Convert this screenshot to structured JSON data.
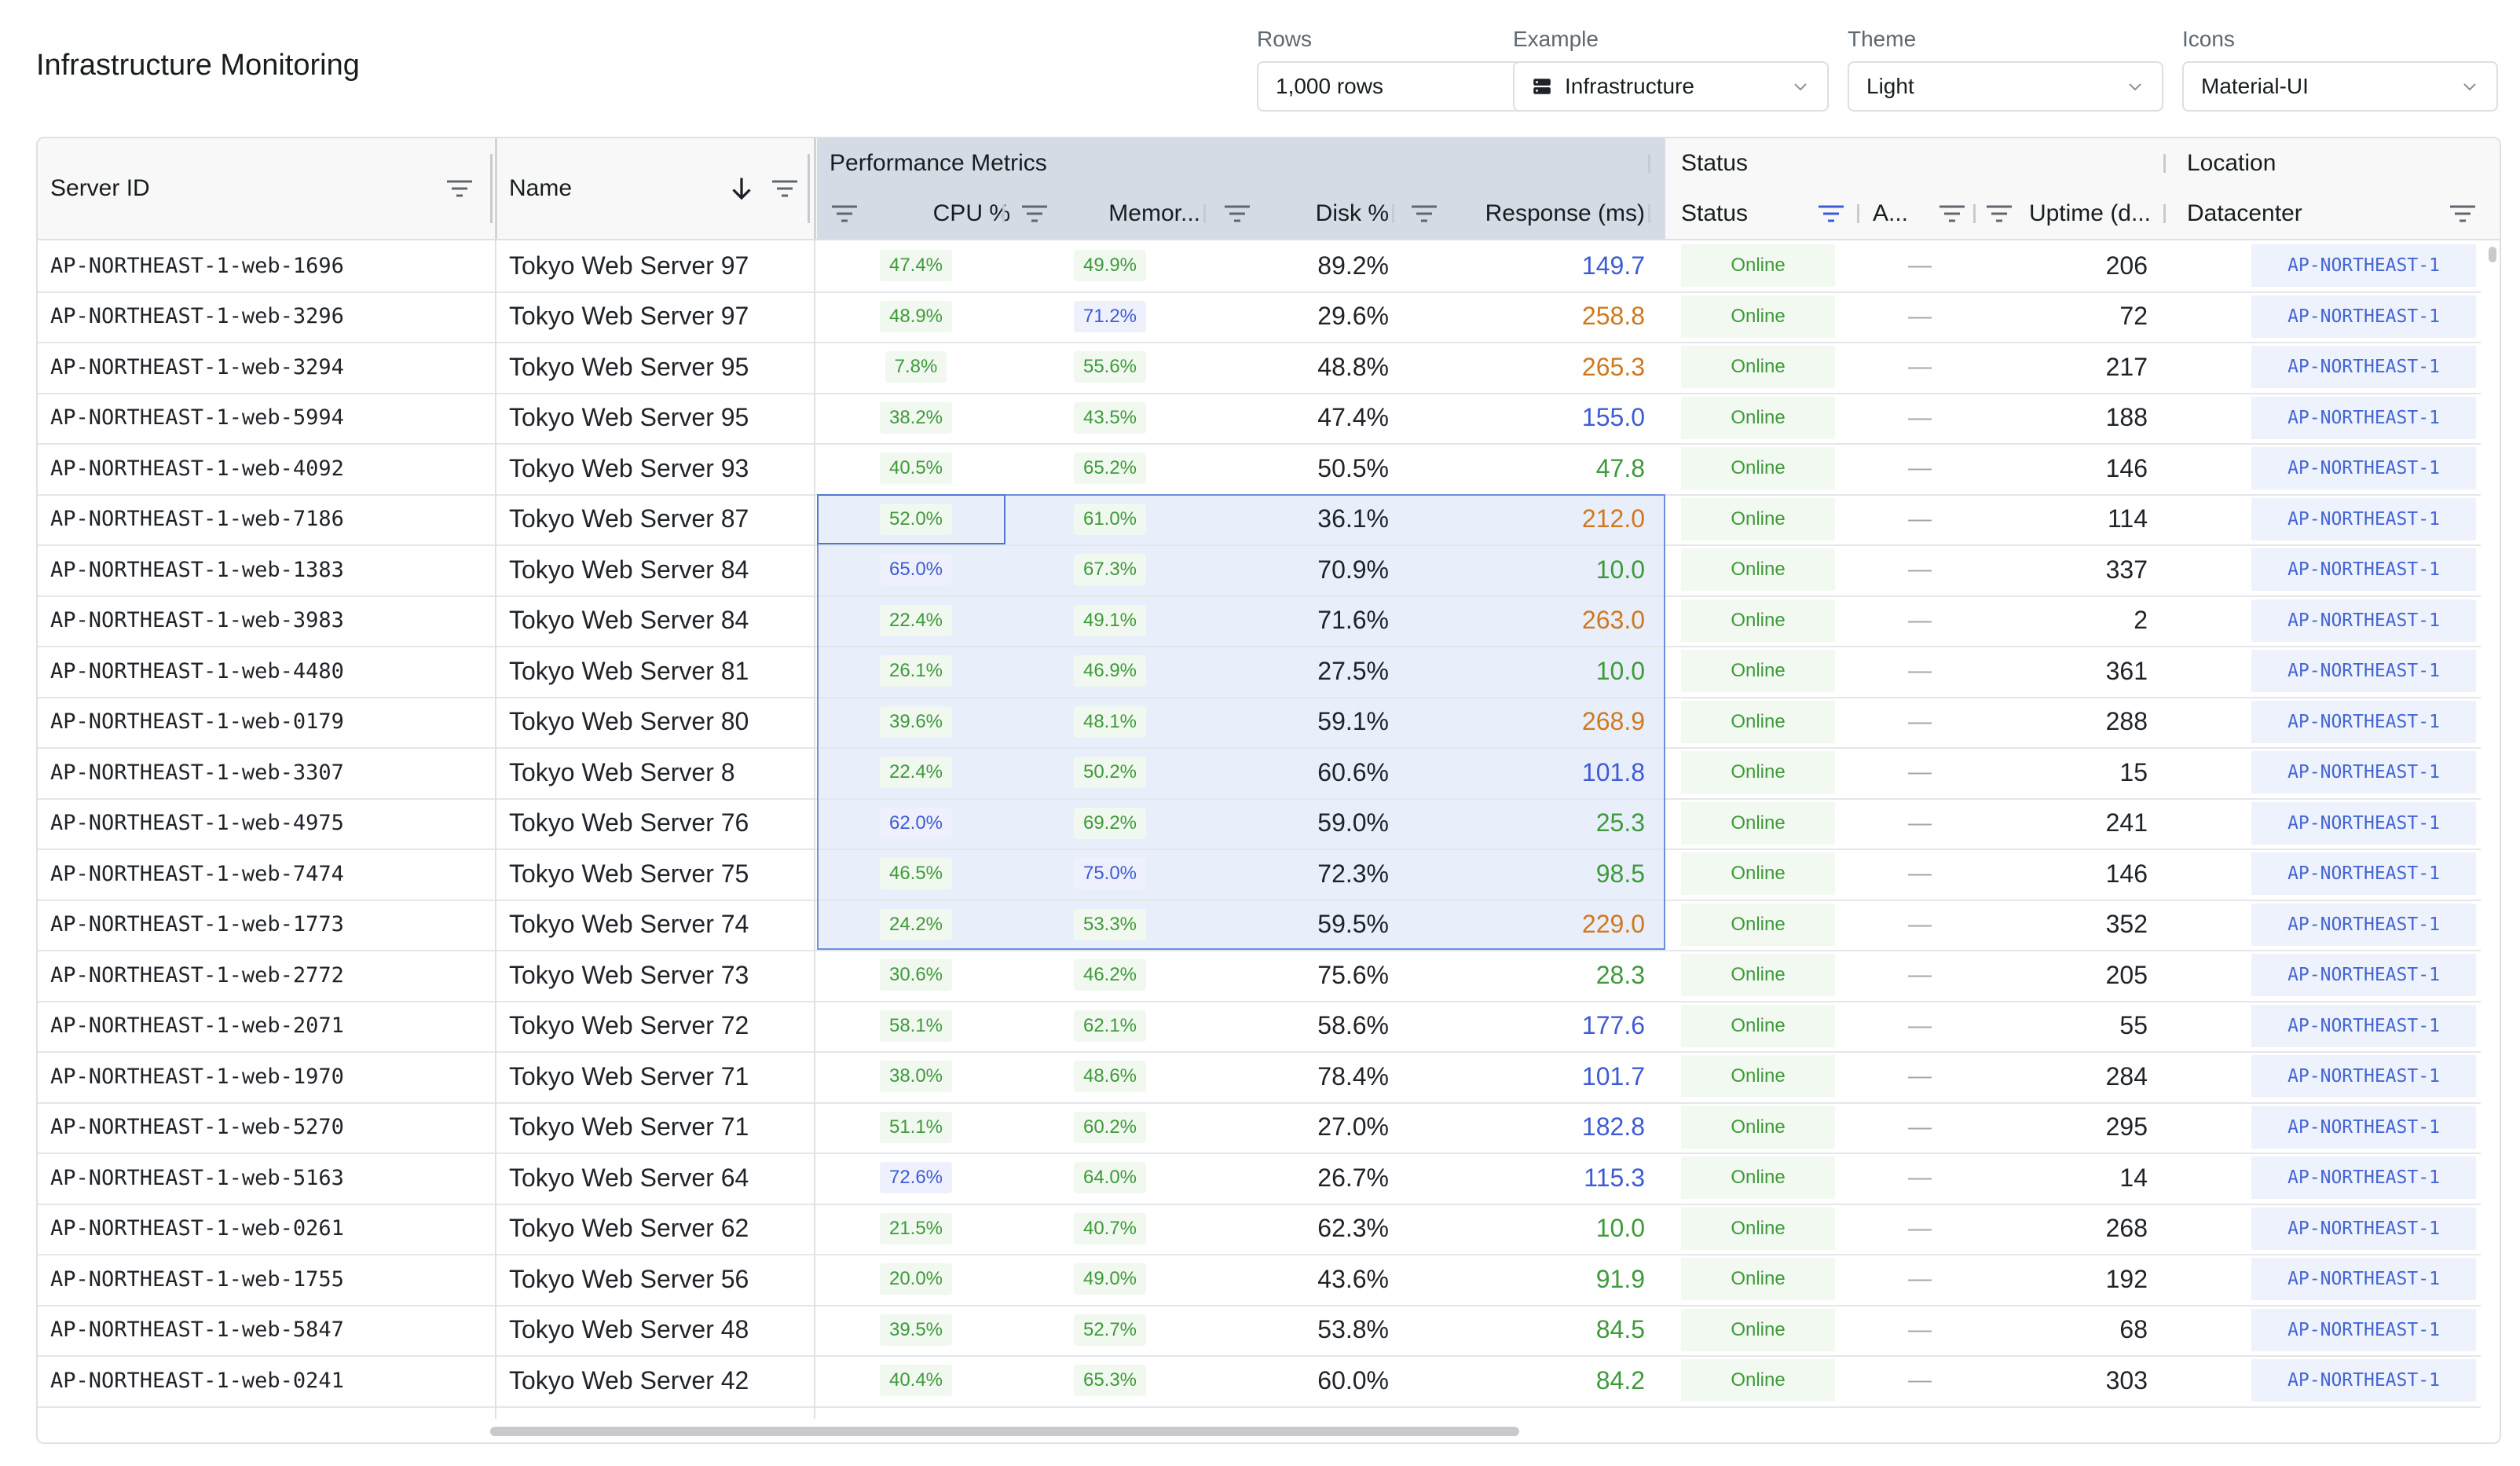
{
  "page": {
    "title": "Infrastructure Monitoring"
  },
  "controls": {
    "rows": {
      "label": "Rows",
      "value": "1,000 rows"
    },
    "example": {
      "label": "Example",
      "value": "Infrastructure"
    },
    "theme": {
      "label": "Theme",
      "value": "Light"
    },
    "icons": {
      "label": "Icons",
      "value": "Material-UI"
    }
  },
  "header": {
    "groups": {
      "performance": "Performance Metrics",
      "status": "Status",
      "location": "Location"
    },
    "columns": {
      "server_id": "Server ID",
      "name": "Name",
      "cpu": "CPU %",
      "memory": "Memor...",
      "disk": "Disk %",
      "response": "Response (ms)",
      "status": "Status",
      "alerts": "A...",
      "uptime": "Uptime (d...",
      "datacenter": "Datacenter"
    }
  },
  "colors": {
    "accent": "#3e5bd6",
    "good": "#3e9a3a",
    "warn": "#d0781e",
    "selection": "#e8effb"
  },
  "rows": [
    {
      "id": "AP-NORTHEAST-1-web-1696",
      "name": "Tokyo Web Server 97",
      "cpu": "47.4%",
      "cpu_c": "green",
      "mem": "49.9%",
      "mem_c": "green",
      "disk": "89.2%",
      "resp": "149.7",
      "resp_c": "blue",
      "status": "Online",
      "alerts": "—",
      "uptime": "206",
      "dc": "AP-NORTHEAST-1"
    },
    {
      "id": "AP-NORTHEAST-1-web-3296",
      "name": "Tokyo Web Server 97",
      "cpu": "48.9%",
      "cpu_c": "green",
      "mem": "71.2%",
      "mem_c": "blue",
      "disk": "29.6%",
      "resp": "258.8",
      "resp_c": "orange",
      "status": "Online",
      "alerts": "—",
      "uptime": "72",
      "dc": "AP-NORTHEAST-1"
    },
    {
      "id": "AP-NORTHEAST-1-web-3294",
      "name": "Tokyo Web Server 95",
      "cpu": "7.8%",
      "cpu_c": "green",
      "mem": "55.6%",
      "mem_c": "green",
      "disk": "48.8%",
      "resp": "265.3",
      "resp_c": "orange",
      "status": "Online",
      "alerts": "—",
      "uptime": "217",
      "dc": "AP-NORTHEAST-1"
    },
    {
      "id": "AP-NORTHEAST-1-web-5994",
      "name": "Tokyo Web Server 95",
      "cpu": "38.2%",
      "cpu_c": "green",
      "mem": "43.5%",
      "mem_c": "green",
      "disk": "47.4%",
      "resp": "155.0",
      "resp_c": "blue",
      "status": "Online",
      "alerts": "—",
      "uptime": "188",
      "dc": "AP-NORTHEAST-1"
    },
    {
      "id": "AP-NORTHEAST-1-web-4092",
      "name": "Tokyo Web Server 93",
      "cpu": "40.5%",
      "cpu_c": "green",
      "mem": "65.2%",
      "mem_c": "green",
      "disk": "50.5%",
      "resp": "47.8",
      "resp_c": "green",
      "status": "Online",
      "alerts": "—",
      "uptime": "146",
      "dc": "AP-NORTHEAST-1"
    },
    {
      "id": "AP-NORTHEAST-1-web-7186",
      "name": "Tokyo Web Server 87",
      "cpu": "52.0%",
      "cpu_c": "green",
      "mem": "61.0%",
      "mem_c": "green",
      "disk": "36.1%",
      "resp": "212.0",
      "resp_c": "orange",
      "status": "Online",
      "alerts": "—",
      "uptime": "114",
      "dc": "AP-NORTHEAST-1"
    },
    {
      "id": "AP-NORTHEAST-1-web-1383",
      "name": "Tokyo Web Server 84",
      "cpu": "65.0%",
      "cpu_c": "blue",
      "mem": "67.3%",
      "mem_c": "green",
      "disk": "70.9%",
      "resp": "10.0",
      "resp_c": "green",
      "status": "Online",
      "alerts": "—",
      "uptime": "337",
      "dc": "AP-NORTHEAST-1"
    },
    {
      "id": "AP-NORTHEAST-1-web-3983",
      "name": "Tokyo Web Server 84",
      "cpu": "22.4%",
      "cpu_c": "green",
      "mem": "49.1%",
      "mem_c": "green",
      "disk": "71.6%",
      "resp": "263.0",
      "resp_c": "orange",
      "status": "Online",
      "alerts": "—",
      "uptime": "2",
      "dc": "AP-NORTHEAST-1"
    },
    {
      "id": "AP-NORTHEAST-1-web-4480",
      "name": "Tokyo Web Server 81",
      "cpu": "26.1%",
      "cpu_c": "green",
      "mem": "46.9%",
      "mem_c": "green",
      "disk": "27.5%",
      "resp": "10.0",
      "resp_c": "green",
      "status": "Online",
      "alerts": "—",
      "uptime": "361",
      "dc": "AP-NORTHEAST-1"
    },
    {
      "id": "AP-NORTHEAST-1-web-0179",
      "name": "Tokyo Web Server 80",
      "cpu": "39.6%",
      "cpu_c": "green",
      "mem": "48.1%",
      "mem_c": "green",
      "disk": "59.1%",
      "resp": "268.9",
      "resp_c": "orange",
      "status": "Online",
      "alerts": "—",
      "uptime": "288",
      "dc": "AP-NORTHEAST-1"
    },
    {
      "id": "AP-NORTHEAST-1-web-3307",
      "name": "Tokyo Web Server 8",
      "cpu": "22.4%",
      "cpu_c": "green",
      "mem": "50.2%",
      "mem_c": "green",
      "disk": "60.6%",
      "resp": "101.8",
      "resp_c": "blue",
      "status": "Online",
      "alerts": "—",
      "uptime": "15",
      "dc": "AP-NORTHEAST-1"
    },
    {
      "id": "AP-NORTHEAST-1-web-4975",
      "name": "Tokyo Web Server 76",
      "cpu": "62.0%",
      "cpu_c": "blue",
      "mem": "69.2%",
      "mem_c": "green",
      "disk": "59.0%",
      "resp": "25.3",
      "resp_c": "green",
      "status": "Online",
      "alerts": "—",
      "uptime": "241",
      "dc": "AP-NORTHEAST-1"
    },
    {
      "id": "AP-NORTHEAST-1-web-7474",
      "name": "Tokyo Web Server 75",
      "cpu": "46.5%",
      "cpu_c": "green",
      "mem": "75.0%",
      "mem_c": "blue",
      "disk": "72.3%",
      "resp": "98.5",
      "resp_c": "green",
      "status": "Online",
      "alerts": "—",
      "uptime": "146",
      "dc": "AP-NORTHEAST-1"
    },
    {
      "id": "AP-NORTHEAST-1-web-1773",
      "name": "Tokyo Web Server 74",
      "cpu": "24.2%",
      "cpu_c": "green",
      "mem": "53.3%",
      "mem_c": "green",
      "disk": "59.5%",
      "resp": "229.0",
      "resp_c": "orange",
      "status": "Online",
      "alerts": "—",
      "uptime": "352",
      "dc": "AP-NORTHEAST-1"
    },
    {
      "id": "AP-NORTHEAST-1-web-2772",
      "name": "Tokyo Web Server 73",
      "cpu": "30.6%",
      "cpu_c": "green",
      "mem": "46.2%",
      "mem_c": "green",
      "disk": "75.6%",
      "resp": "28.3",
      "resp_c": "green",
      "status": "Online",
      "alerts": "—",
      "uptime": "205",
      "dc": "AP-NORTHEAST-1"
    },
    {
      "id": "AP-NORTHEAST-1-web-2071",
      "name": "Tokyo Web Server 72",
      "cpu": "58.1%",
      "cpu_c": "green",
      "mem": "62.1%",
      "mem_c": "green",
      "disk": "58.6%",
      "resp": "177.6",
      "resp_c": "blue",
      "status": "Online",
      "alerts": "—",
      "uptime": "55",
      "dc": "AP-NORTHEAST-1"
    },
    {
      "id": "AP-NORTHEAST-1-web-1970",
      "name": "Tokyo Web Server 71",
      "cpu": "38.0%",
      "cpu_c": "green",
      "mem": "48.6%",
      "mem_c": "green",
      "disk": "78.4%",
      "resp": "101.7",
      "resp_c": "blue",
      "status": "Online",
      "alerts": "—",
      "uptime": "284",
      "dc": "AP-NORTHEAST-1"
    },
    {
      "id": "AP-NORTHEAST-1-web-5270",
      "name": "Tokyo Web Server 71",
      "cpu": "51.1%",
      "cpu_c": "green",
      "mem": "60.2%",
      "mem_c": "green",
      "disk": "27.0%",
      "resp": "182.8",
      "resp_c": "blue",
      "status": "Online",
      "alerts": "—",
      "uptime": "295",
      "dc": "AP-NORTHEAST-1"
    },
    {
      "id": "AP-NORTHEAST-1-web-5163",
      "name": "Tokyo Web Server 64",
      "cpu": "72.6%",
      "cpu_c": "blue",
      "mem": "64.0%",
      "mem_c": "green",
      "disk": "26.7%",
      "resp": "115.3",
      "resp_c": "blue",
      "status": "Online",
      "alerts": "—",
      "uptime": "14",
      "dc": "AP-NORTHEAST-1"
    },
    {
      "id": "AP-NORTHEAST-1-web-0261",
      "name": "Tokyo Web Server 62",
      "cpu": "21.5%",
      "cpu_c": "green",
      "mem": "40.7%",
      "mem_c": "green",
      "disk": "62.3%",
      "resp": "10.0",
      "resp_c": "green",
      "status": "Online",
      "alerts": "—",
      "uptime": "268",
      "dc": "AP-NORTHEAST-1"
    },
    {
      "id": "AP-NORTHEAST-1-web-1755",
      "name": "Tokyo Web Server 56",
      "cpu": "20.0%",
      "cpu_c": "green",
      "mem": "49.0%",
      "mem_c": "green",
      "disk": "43.6%",
      "resp": "91.9",
      "resp_c": "green",
      "status": "Online",
      "alerts": "—",
      "uptime": "192",
      "dc": "AP-NORTHEAST-1"
    },
    {
      "id": "AP-NORTHEAST-1-web-5847",
      "name": "Tokyo Web Server 48",
      "cpu": "39.5%",
      "cpu_c": "green",
      "mem": "52.7%",
      "mem_c": "green",
      "disk": "53.8%",
      "resp": "84.5",
      "resp_c": "green",
      "status": "Online",
      "alerts": "—",
      "uptime": "68",
      "dc": "AP-NORTHEAST-1"
    },
    {
      "id": "AP-NORTHEAST-1-web-0241",
      "name": "Tokyo Web Server 42",
      "cpu": "40.4%",
      "cpu_c": "green",
      "mem": "65.3%",
      "mem_c": "green",
      "disk": "60.0%",
      "resp": "84.2",
      "resp_c": "green",
      "status": "Online",
      "alerts": "—",
      "uptime": "303",
      "dc": "AP-NORTHEAST-1"
    }
  ]
}
